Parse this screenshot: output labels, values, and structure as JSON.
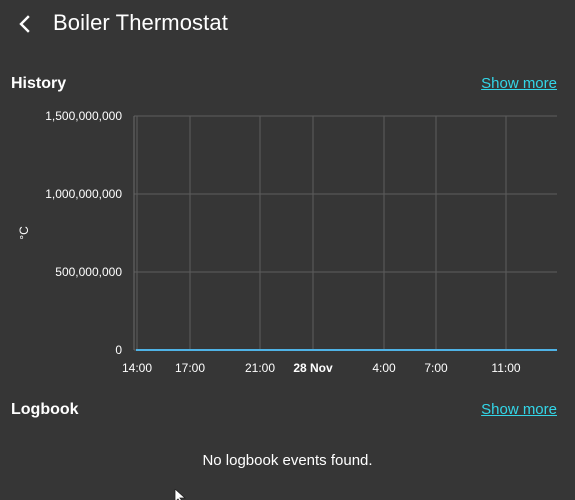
{
  "header": {
    "title": "Boiler Thermostat"
  },
  "history": {
    "title": "History",
    "show_more": "Show more"
  },
  "logbook": {
    "title": "Logbook",
    "show_more": "Show more",
    "empty_message": "No logbook events found."
  },
  "colors": {
    "background": "#363636",
    "link": "#33d6e8",
    "series": "#4fb3e6"
  },
  "chart_data": {
    "type": "line",
    "title": "",
    "xlabel": "",
    "ylabel": "°C",
    "ylim": [
      0,
      1500000000
    ],
    "y_ticks": [
      "1,500,000,000",
      "1,000,000,000",
      "500,000,000",
      "0"
    ],
    "x_ticks": [
      "14:00",
      "17:00",
      "21:00",
      "28 Nov",
      "4:00",
      "7:00",
      "11:00"
    ],
    "x_ticks_bold": [
      false,
      false,
      false,
      true,
      false,
      false,
      false
    ],
    "grid": true,
    "series": [
      {
        "values": [
          0,
          0,
          0,
          0,
          0,
          0,
          0,
          0
        ]
      }
    ]
  }
}
